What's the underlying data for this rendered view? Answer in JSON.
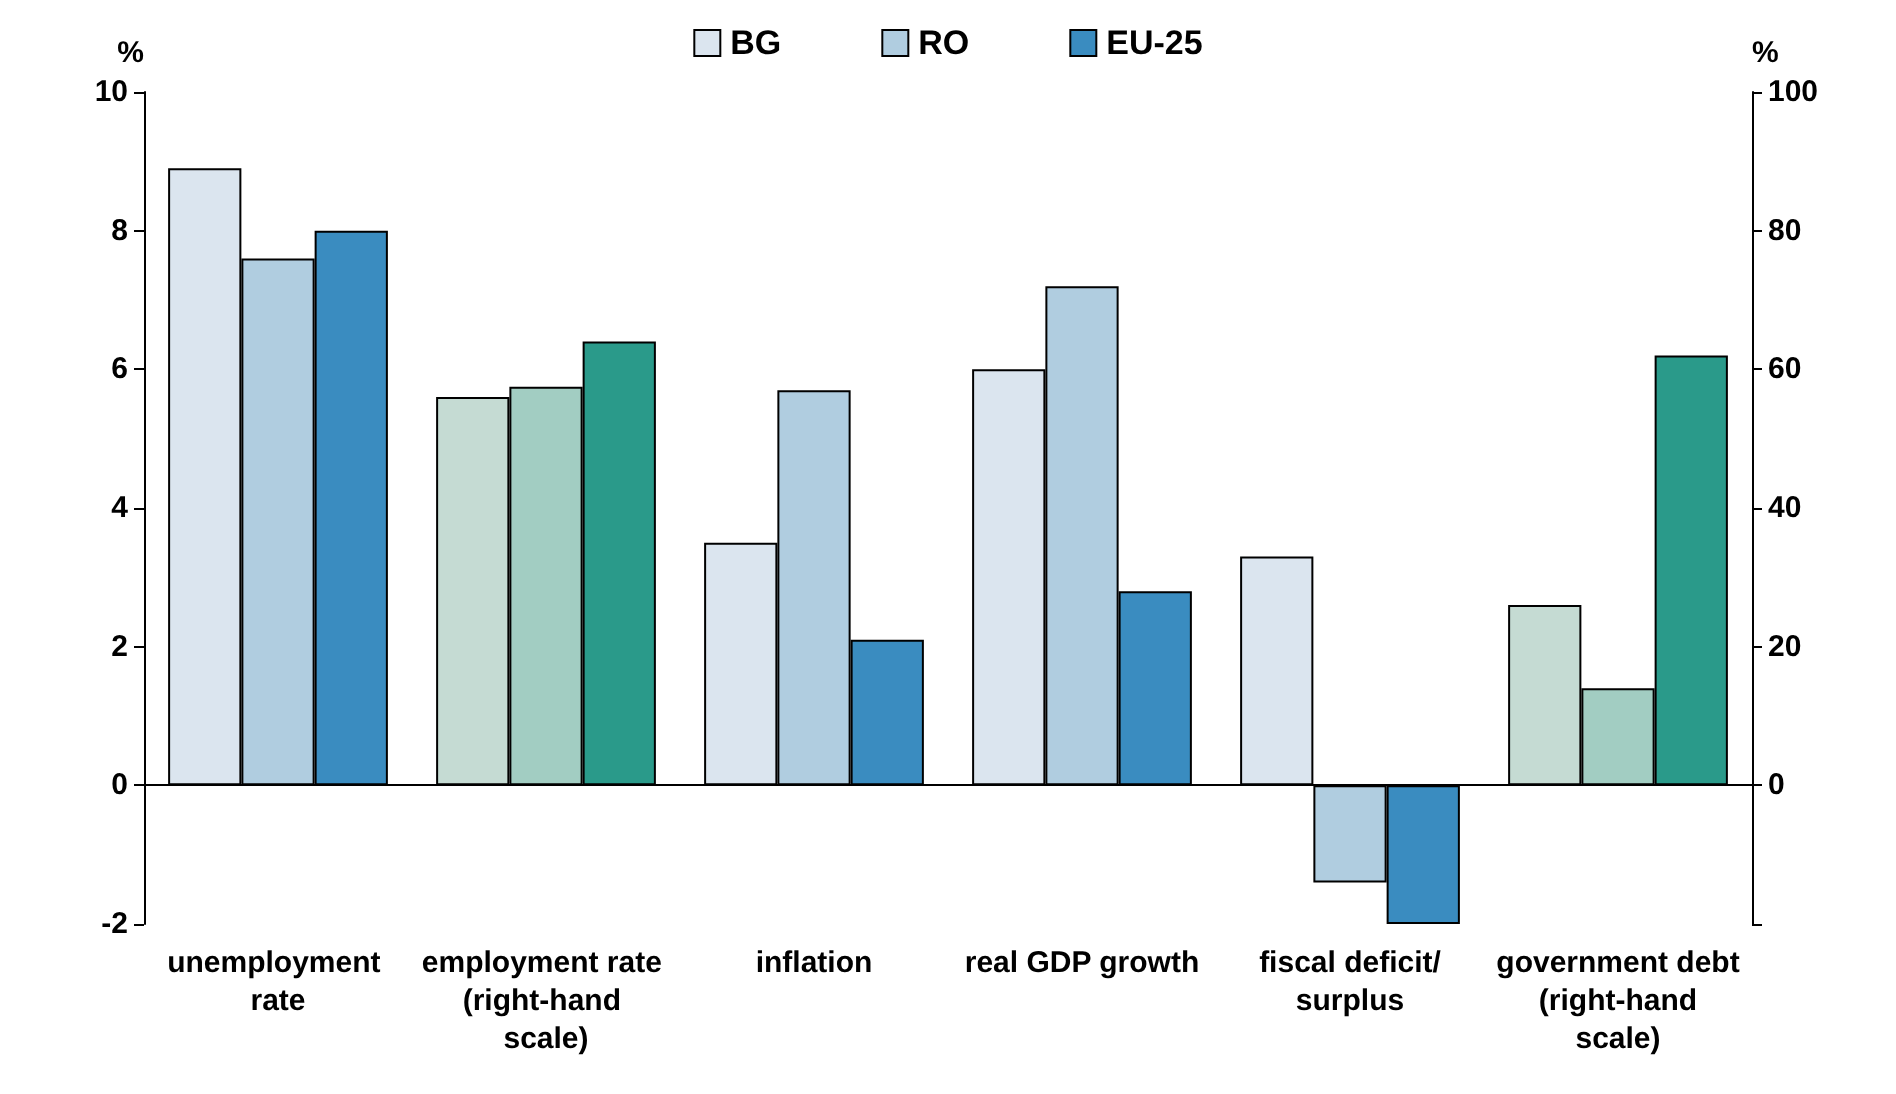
{
  "chart_data": {
    "type": "bar",
    "categories": [
      "unemployment rate",
      "employment rate (right-hand scale)",
      "inflation",
      "real GDP growth",
      "fiscal deficit/surplus",
      "government debt (right-hand scale)"
    ],
    "series": [
      {
        "name": "BG",
        "color": "#dbe5ef",
        "values": [
          8.9,
          null,
          3.5,
          6.0,
          3.3,
          null
        ]
      },
      {
        "name": "RO",
        "color": "#b0cde0",
        "values": [
          7.6,
          null,
          5.7,
          7.2,
          -1.4,
          null
        ]
      },
      {
        "name": "EU-25",
        "color": "#3a8cc0",
        "values": [
          8.0,
          null,
          2.1,
          2.8,
          -2.0,
          null
        ]
      },
      {
        "color": "#c5dbd3",
        "axis": "y2",
        "values": [
          null,
          56,
          null,
          null,
          null,
          26
        ]
      },
      {
        "color": "#a2cdc2",
        "axis": "y2",
        "values": [
          null,
          57.5,
          null,
          null,
          null,
          14
        ]
      },
      {
        "color": "#2a9a8a",
        "axis": "y2",
        "values": [
          null,
          64,
          null,
          null,
          null,
          62
        ]
      }
    ],
    "ylabel": "%",
    "y2label": "%",
    "ylim": [
      -2,
      10
    ],
    "yticks": [
      -2,
      0,
      2,
      4,
      6,
      8,
      10
    ],
    "y2lim": [
      -20,
      100
    ],
    "y2ticks": [
      {
        "value": -20,
        "label": null
      },
      0,
      20,
      40,
      60,
      80,
      100
    ],
    "ref_lines": [
      {
        "axis": "y",
        "value": 0,
        "color": "#000000"
      }
    ],
    "legend": "top"
  }
}
